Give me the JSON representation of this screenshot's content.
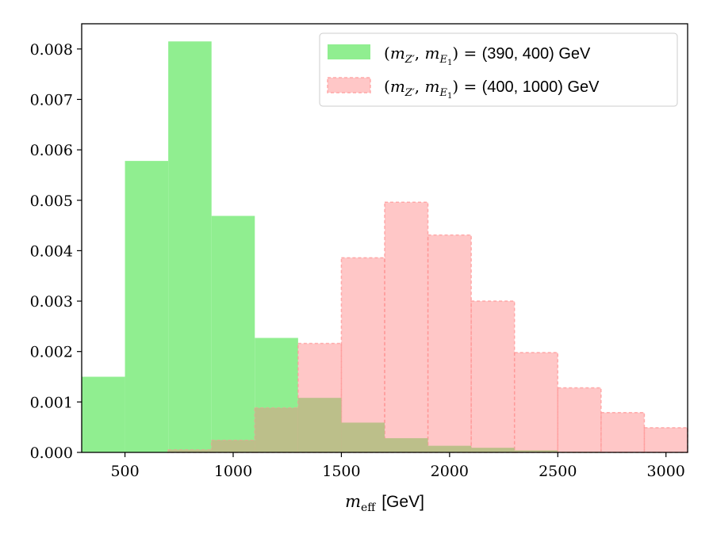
{
  "chart_data": {
    "type": "bar",
    "xlabel": "m_eff [GeV]",
    "xlabel_main": "m",
    "xlabel_sub": "eff",
    "xlabel_unit": "[GeV]",
    "ylabel": "",
    "xlim": [
      300,
      3100
    ],
    "ylim": [
      0,
      0.0085
    ],
    "xticks": [
      500,
      1000,
      1500,
      2000,
      2500,
      3000
    ],
    "yticks": [
      "0.000",
      "0.001",
      "0.002",
      "0.003",
      "0.004",
      "0.005",
      "0.006",
      "0.007",
      "0.008"
    ],
    "grid": false,
    "legend_position": "top-right",
    "bin_edges": [
      300,
      500,
      700,
      900,
      1100,
      1300,
      1500,
      1700,
      1900,
      2100,
      2300,
      2500,
      2700,
      2900,
      3100
    ],
    "series": [
      {
        "name": "(m_Z', m_E1) = (390, 400) GeV",
        "legend_masses": "(390, 400) GeV",
        "color": "#90ee90",
        "style": "solid",
        "values": [
          0.0015,
          0.00578,
          0.00815,
          0.00469,
          0.00227,
          0.00108,
          0.00059,
          0.00028,
          0.00013,
          9e-05,
          4e-05,
          1e-05,
          0.0,
          0.0
        ]
      },
      {
        "name": "(m_Z', m_E1) = (400, 1000) GeV",
        "legend_masses": "(400, 1000) GeV",
        "color": "#ff9999",
        "style": "dashed",
        "values": [
          0.0,
          0.0,
          5e-05,
          0.00024,
          0.00088,
          0.00216,
          0.00386,
          0.00496,
          0.00431,
          0.003,
          0.00198,
          0.00128,
          0.00079,
          0.00049
        ]
      }
    ]
  }
}
